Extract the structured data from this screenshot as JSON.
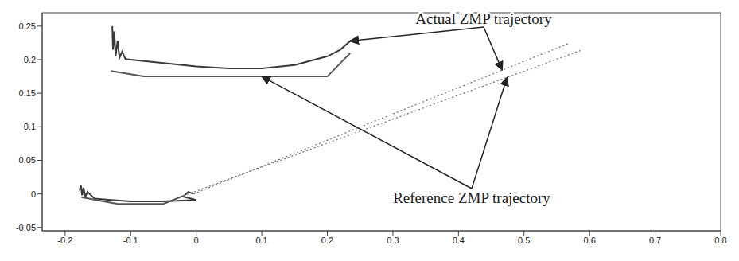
{
  "chart_data": {
    "type": "line",
    "xlim": [
      -0.235,
      0.8
    ],
    "xticks": [
      -0.2,
      -0.1,
      0,
      0.1,
      0.2,
      0.3,
      0.4,
      0.5,
      0.6,
      0.7,
      0.8
    ],
    "ylim": [
      -0.055,
      0.27
    ],
    "yticks": [
      -0.05,
      0,
      0.05,
      0.1,
      0.15,
      0.2,
      0.25
    ],
    "grid": false,
    "series": [
      {
        "name": "Actual ZMP trajectory",
        "color": "#3a3a3a",
        "line_style": "solid",
        "x": [
          -0.178,
          -0.176,
          -0.174,
          -0.172,
          -0.169,
          -0.166,
          -0.155,
          -0.13,
          -0.1,
          -0.05,
          0.0,
          -0.02,
          -0.012,
          -0.004,
          null,
          -0.128,
          -0.127,
          -0.125,
          -0.123,
          -0.12,
          -0.117,
          -0.113,
          -0.108,
          -0.1,
          -0.05,
          0.0,
          0.05,
          0.1,
          0.15,
          0.2,
          0.22,
          0.235,
          0.245
        ],
        "values": [
          0.005,
          0.013,
          -0.002,
          0.009,
          -0.004,
          0.003,
          -0.007,
          -0.009,
          -0.011,
          -0.011,
          -0.009,
          -0.004,
          0.003,
          0.0,
          null,
          0.25,
          0.215,
          0.242,
          0.205,
          0.228,
          0.203,
          0.212,
          0.201,
          0.2,
          0.195,
          0.19,
          0.187,
          0.187,
          0.192,
          0.205,
          0.215,
          0.228,
          0.225
        ]
      },
      {
        "color": "#777777",
        "line_style": "dotted",
        "x": [
          -0.004,
          0.57
        ],
        "values": [
          0.0,
          0.225
        ]
      },
      {
        "name": "Reference ZMP trajectory",
        "color": "#555555",
        "line_style": "solid",
        "x": [
          -0.175,
          -0.12,
          -0.05,
          -0.02,
          null,
          -0.13,
          -0.08,
          0.0,
          0.1,
          0.2,
          0.235
        ],
        "values": [
          -0.005,
          -0.015,
          -0.015,
          -0.003,
          null,
          0.183,
          0.175,
          0.175,
          0.175,
          0.175,
          0.21
        ]
      },
      {
        "color": "#777777",
        "line_style": "dotted",
        "x": [
          -0.02,
          0.59
        ],
        "values": [
          -0.003,
          0.215
        ]
      }
    ]
  }
}
